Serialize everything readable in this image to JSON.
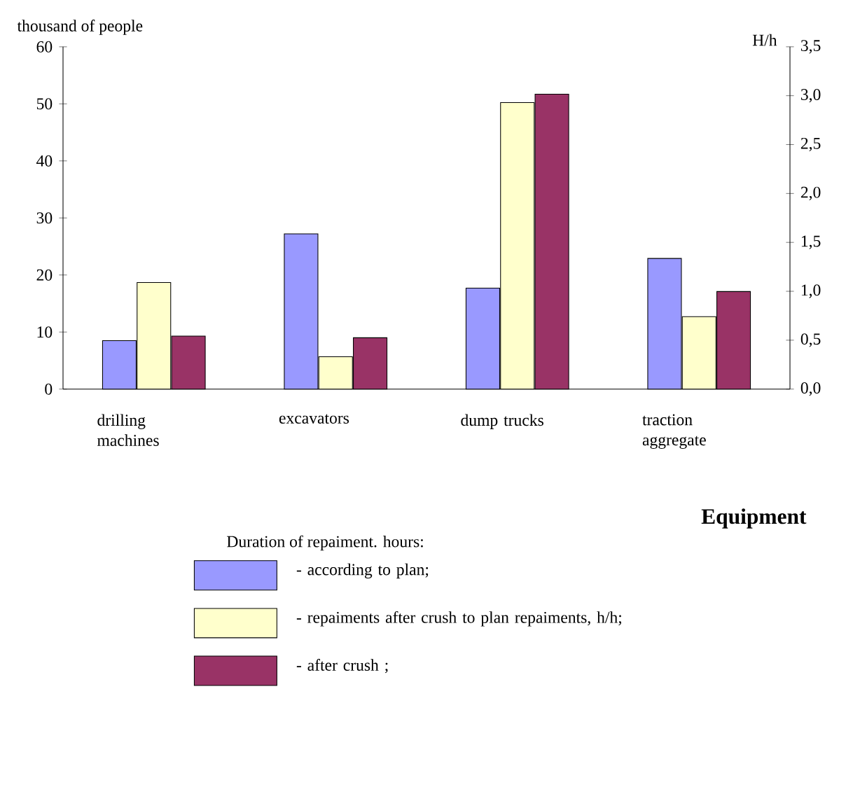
{
  "chart_data": {
    "type": "bar",
    "xlabel": "Equipment",
    "ylabel": "thousand of people",
    "y2label": "H/h",
    "categories": [
      "drilling machines",
      "excavators",
      "dump trucks",
      "traction aggregate"
    ],
    "series": [
      {
        "name": "- according to plan;",
        "color": "#9999ff",
        "values": [
          8.5,
          27.2,
          17.7,
          22.9
        ]
      },
      {
        "name": "- repaiments after crush to plan repaiments, h/h;",
        "color": "#ffffcc",
        "axis": "y2",
        "values": [
          1.09,
          0.33,
          2.93,
          0.74
        ]
      },
      {
        "name": "- after crush ;",
        "color": "#993366",
        "values": [
          9.3,
          9.0,
          51.7,
          17.1
        ]
      }
    ],
    "ylim": [
      0,
      60
    ],
    "yticks": [
      0,
      10,
      20,
      30,
      40,
      50,
      60
    ],
    "y2lim": [
      0,
      3.5
    ],
    "y2ticks": [
      {
        "value": 0,
        "label": "0,0"
      },
      {
        "value": 0.5,
        "label": "0,5"
      },
      {
        "value": 1,
        "label": "1,0"
      },
      {
        "value": 1.5,
        "label": "1,5"
      },
      {
        "value": 2,
        "label": "2,0"
      },
      {
        "value": 2.5,
        "label": "2,5"
      },
      {
        "value": 3,
        "label": "3,0"
      },
      {
        "value": 3.5,
        "label": "3,5"
      }
    ],
    "legend": "bottom",
    "legend_title": "Duration of repaiment. hours:"
  }
}
